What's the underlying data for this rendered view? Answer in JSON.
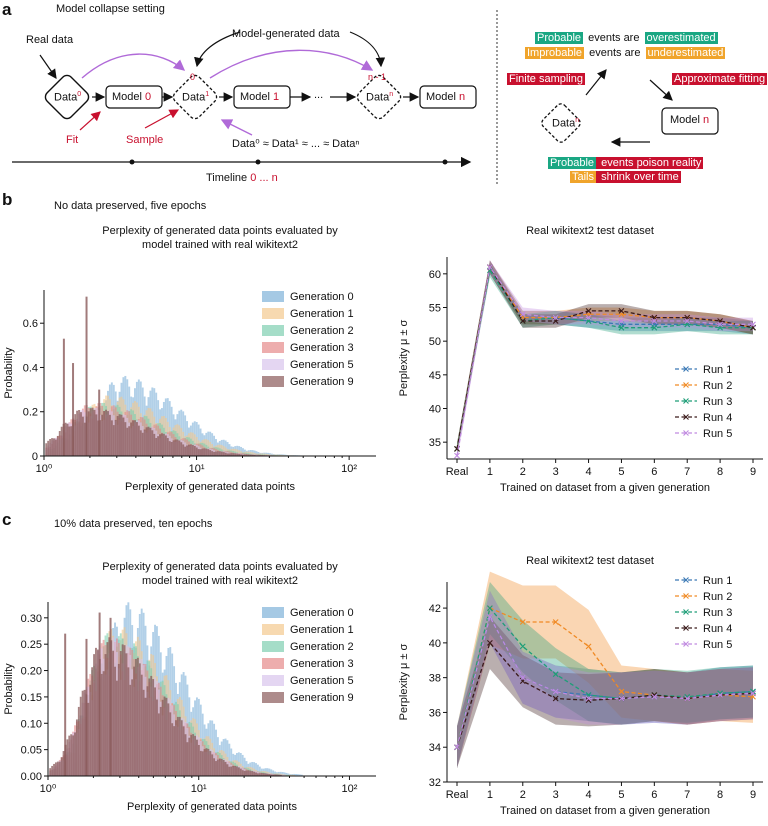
{
  "panel_a": {
    "letter": "a",
    "title": "Model collapse setting",
    "real_data": "Real data",
    "model_generated": "Model-generated data",
    "data0": "Data",
    "data0_sup": "0",
    "model0": "Model ",
    "model0_n": "0",
    "data1": "Data",
    "data1_sup": "1",
    "model1": "Model ",
    "model1_n": "1",
    "dots": "...",
    "datan": "Data",
    "datan_sup": "n",
    "modeln": "Model ",
    "modeln_n": "n",
    "circle0": "0",
    "circlen1": "n - 1",
    "fit": "Fit",
    "sample": "Sample",
    "approx_eq": "Data⁰ ≈ Data¹ ≈ ... ≈ Dataⁿ",
    "timeline": "Timeline ",
    "timeline_range": "0 ... n",
    "right": {
      "line1_a": "Probable",
      "line1_b": " events are ",
      "line1_c": "overestimated",
      "line2_a": "Improbable",
      "line2_b": " events are ",
      "line2_c": "underestimated",
      "finite": "Finite sampling",
      "approx": "Approximate fitting",
      "datan": "Data",
      "datan_sup": "n",
      "modeln": "Model ",
      "modeln_n": "n",
      "line3_a": "Probable",
      "line3_b": " events poison reality",
      "line4_a": "Tails",
      "line4_b": " shrink over time"
    }
  },
  "panel_b": {
    "letter": "b",
    "subtitle": "No data preserved, five epochs",
    "hist_title": "Perplexity of generated data points evaluated by\nmodel trained with real wikitext2",
    "hist_xlabel": "Perplexity of generated data points",
    "hist_ylabel": "Probability",
    "line_title": "Real wikitext2 test dataset",
    "line_xlabel": "Trained on dataset from a given generation",
    "line_ylabel": "Perplexity μ ± σ"
  },
  "panel_c": {
    "letter": "c",
    "subtitle": "10% data preserved, ten epochs",
    "hist_title": "Perplexity of generated data points evaluated by\nmodel trained with real wikitext2",
    "hist_xlabel": "Perplexity of generated data points",
    "hist_ylabel": "Probability",
    "line_title": "Real wikitext2 test dataset",
    "line_xlabel": "Trained on dataset from a given generation",
    "line_ylabel": "Perplexity μ ± σ"
  },
  "colors": {
    "gen0": "#7fb2d9",
    "gen1": "#f3c98f",
    "gen2": "#7fcfb0",
    "gen3": "#e58a8a",
    "gen5": "#d8c4ec",
    "gen9": "#8a5a5a",
    "run1": "#3a78b5",
    "run2": "#f08a24",
    "run3": "#1f9e78",
    "run4": "#3a1a1a",
    "run5": "#c08ae0",
    "arrow_purple": "#b06ad8",
    "accent_red": "#c8102e"
  },
  "chart_data": [
    {
      "id": "b_hist",
      "type": "histogram",
      "xscale": "log",
      "xlim": [
        1,
        150
      ],
      "ylim": [
        0,
        0.75
      ],
      "xticks": [
        {
          "v": 1,
          "label": "10⁰"
        },
        {
          "v": 10,
          "label": "10¹"
        },
        {
          "v": 100,
          "label": "10²"
        }
      ],
      "yticks": [
        0,
        0.2,
        0.4,
        0.6
      ],
      "legend": "top-right",
      "series": [
        {
          "name": "Generation 0",
          "peak_x": 3.2,
          "peak_y": 0.33,
          "spread": 0.28
        },
        {
          "name": "Generation 1",
          "peak_x": 2.6,
          "peak_y": 0.25,
          "spread": 0.3
        },
        {
          "name": "Generation 2",
          "peak_x": 2.3,
          "peak_y": 0.22,
          "spread": 0.3
        },
        {
          "name": "Generation 3",
          "peak_x": 2.1,
          "peak_y": 0.22,
          "spread": 0.3
        },
        {
          "name": "Generation 5",
          "peak_x": 2.0,
          "peak_y": 0.2,
          "spread": 0.3
        },
        {
          "name": "Generation 9",
          "peak_x": 1.9,
          "peak_y": 0.2,
          "spread": 0.3
        }
      ],
      "spikes": [
        {
          "x": 1.35,
          "y": 0.53
        },
        {
          "x": 1.9,
          "y": 0.72
        },
        {
          "x": 1.55,
          "y": 0.42
        },
        {
          "x": 2.3,
          "y": 0.3
        }
      ]
    },
    {
      "id": "b_line",
      "type": "line",
      "categories": [
        "Real",
        "1",
        "2",
        "3",
        "4",
        "5",
        "6",
        "7",
        "8",
        "9"
      ],
      "ylim": [
        32.5,
        62.5
      ],
      "yticks": [
        35,
        40,
        45,
        50,
        55,
        60
      ],
      "legend": "bottom-right",
      "series": [
        {
          "name": "Run 1",
          "values": [
            34,
            61,
            53.5,
            53.5,
            53,
            52.5,
            52.5,
            52.5,
            52.5,
            52
          ]
        },
        {
          "name": "Run 2",
          "values": [
            34,
            61,
            53.5,
            53.5,
            54,
            54,
            53.5,
            53.5,
            53,
            52
          ]
        },
        {
          "name": "Run 3",
          "values": [
            34,
            60.5,
            53,
            53.5,
            53,
            52,
            52,
            52.5,
            52,
            52
          ]
        },
        {
          "name": "Run 4",
          "values": [
            34,
            61,
            53,
            53,
            54.5,
            54.5,
            53.5,
            53.5,
            53,
            52
          ]
        },
        {
          "name": "Run 5",
          "values": [
            33,
            61,
            54,
            53.5,
            53.5,
            53,
            53,
            53,
            52.5,
            52.5
          ]
        }
      ],
      "band": 1.0
    },
    {
      "id": "c_hist",
      "type": "histogram",
      "xscale": "log",
      "xlim": [
        1,
        150
      ],
      "ylim": [
        0,
        0.33
      ],
      "xticks": [
        {
          "v": 1,
          "label": "10⁰"
        },
        {
          "v": 10,
          "label": "10¹"
        },
        {
          "v": 100,
          "label": "10²"
        }
      ],
      "yticks": [
        0,
        0.05,
        0.1,
        0.15,
        0.2,
        0.25,
        0.3
      ],
      "legend": "top-right",
      "series": [
        {
          "name": "Generation 0",
          "peak_x": 3.3,
          "peak_y": 0.3,
          "spread": 0.28
        },
        {
          "name": "Generation 1",
          "peak_x": 2.8,
          "peak_y": 0.26,
          "spread": 0.28
        },
        {
          "name": "Generation 2",
          "peak_x": 2.6,
          "peak_y": 0.25,
          "spread": 0.28
        },
        {
          "name": "Generation 3",
          "peak_x": 2.5,
          "peak_y": 0.24,
          "spread": 0.28
        },
        {
          "name": "Generation 5",
          "peak_x": 2.5,
          "peak_y": 0.24,
          "spread": 0.28
        },
        {
          "name": "Generation 9",
          "peak_x": 2.4,
          "peak_y": 0.24,
          "spread": 0.28
        }
      ],
      "spikes": [
        {
          "x": 1.3,
          "y": 0.27
        },
        {
          "x": 1.8,
          "y": 0.26
        },
        {
          "x": 2.2,
          "y": 0.31
        },
        {
          "x": 2.6,
          "y": 0.3
        }
      ]
    },
    {
      "id": "c_line",
      "type": "line",
      "categories": [
        "Real",
        "1",
        "2",
        "3",
        "4",
        "5",
        "6",
        "7",
        "8",
        "9"
      ],
      "ylim": [
        32,
        43.5
      ],
      "yticks": [
        32,
        34,
        36,
        38,
        40,
        42
      ],
      "legend": "top-right",
      "series": [
        {
          "name": "Run 1",
          "values": [
            34,
            41.5,
            38,
            37.2,
            37,
            36.8,
            36.9,
            36.8,
            37.1,
            37.2
          ]
        },
        {
          "name": "Run 2",
          "values": [
            34,
            42,
            41.2,
            41.2,
            39.8,
            37.2,
            37,
            36.8,
            37,
            36.9
          ]
        },
        {
          "name": "Run 3",
          "values": [
            34,
            42,
            39.8,
            38.2,
            37,
            36.8,
            37,
            36.9,
            37.1,
            37.2
          ]
        },
        {
          "name": "Run 4",
          "values": [
            34,
            40,
            37.8,
            36.8,
            36.7,
            36.8,
            37,
            36.8,
            37,
            37.1
          ]
        },
        {
          "name": "Run 5",
          "values": [
            34,
            41.5,
            38,
            37.2,
            36.8,
            36.8,
            36.9,
            36.8,
            37,
            37.1
          ]
        }
      ],
      "band": 1.5
    }
  ]
}
